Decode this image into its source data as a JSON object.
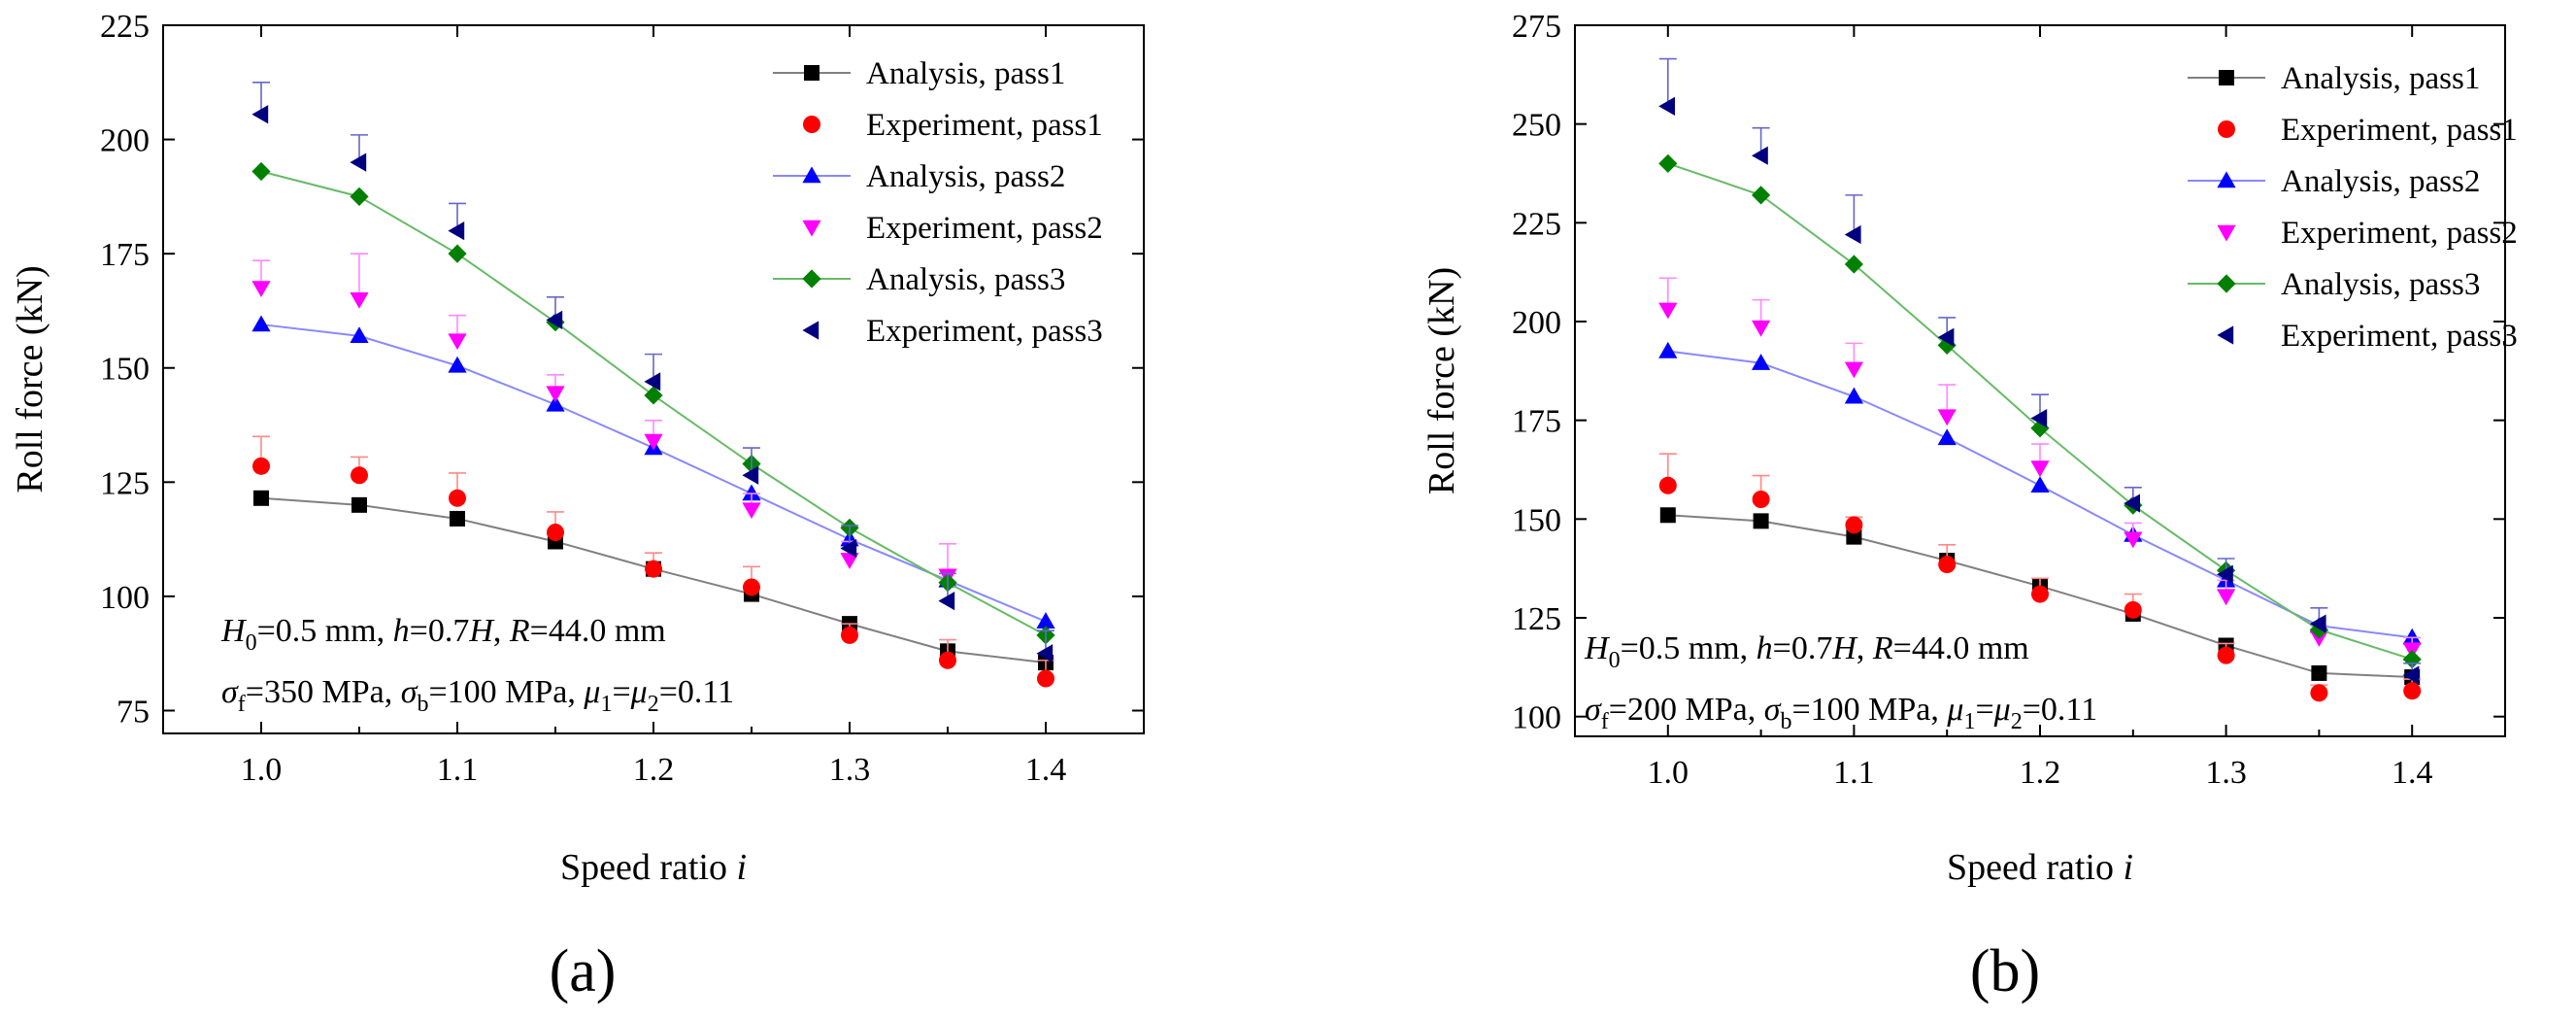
{
  "chart_data": [
    {
      "type": "line",
      "panel_label": "(a)",
      "xlabel": "Speed ratio i",
      "xlabel_main": "Speed ratio ",
      "xlabel_italic": "i",
      "ylabel": "Roll force (kN)",
      "xlim": [
        0.95,
        1.45
      ],
      "ylim": [
        70,
        225
      ],
      "xticks": [
        1.0,
        1.1,
        1.2,
        1.3,
        1.4
      ],
      "xtick_labels": [
        "1.0",
        "1.1",
        "1.2",
        "1.3",
        "1.4"
      ],
      "yticks": [
        75,
        100,
        125,
        150,
        175,
        200,
        225
      ],
      "ytick_labels": [
        "75",
        "100",
        "125",
        "150",
        "175",
        "200",
        "225"
      ],
      "legend_position": "top-right",
      "grid": false,
      "x": [
        1.0,
        1.05,
        1.1,
        1.15,
        1.2,
        1.25,
        1.3,
        1.35,
        1.4
      ],
      "series": [
        {
          "name": "Analysis, pass1",
          "kind": "analysis",
          "marker": "square",
          "color": "#000000",
          "line_color": "#808080",
          "values": [
            121.5,
            120,
            117,
            112,
            106,
            100.5,
            94,
            88,
            85.5
          ]
        },
        {
          "name": "Experiment, pass1",
          "kind": "experiment",
          "marker": "circle",
          "color": "#ff0000",
          "values": [
            128.5,
            126.5,
            121.5,
            114,
            106,
            102,
            91.5,
            86,
            82
          ],
          "errors": [
            6.5,
            4,
            5.5,
            4.5,
            3.5,
            4.5,
            2.5,
            4.5,
            4
          ]
        },
        {
          "name": "Analysis, pass2",
          "kind": "analysis",
          "marker": "triangle-up",
          "color": "#0000ff",
          "line_color": "#8888ff",
          "values": [
            159.5,
            157,
            150.5,
            142,
            132.5,
            122.5,
            112.5,
            103.5,
            94.5
          ]
        },
        {
          "name": "Experiment, pass2",
          "kind": "experiment",
          "marker": "triangle-down",
          "color": "#ff00ff",
          "values": [
            167.5,
            165,
            156,
            144.5,
            134,
            119,
            108,
            104.5,
            null
          ],
          "errors": [
            6,
            10,
            5.5,
            4,
            4.5,
            3.5,
            4,
            7,
            null
          ]
        },
        {
          "name": "Analysis, pass3",
          "kind": "analysis",
          "marker": "diamond",
          "color": "#008000",
          "line_color": "#66bb66",
          "values": [
            193,
            187.5,
            175,
            160,
            144,
            129,
            115,
            103,
            91.5
          ]
        },
        {
          "name": "Experiment, pass3",
          "kind": "experiment",
          "marker": "triangle-left",
          "color": "#000080",
          "values": [
            205.5,
            195,
            180,
            160.5,
            147,
            126.5,
            110.5,
            99,
            87.5
          ],
          "errors": [
            7,
            6,
            6,
            5,
            6,
            6,
            5,
            6,
            5
          ]
        }
      ],
      "annotation_lines": [
        [
          {
            "t": "H",
            "i": true
          },
          {
            "t": "0",
            "sub": true
          },
          {
            "t": "=0.5 mm, "
          },
          {
            "t": "h",
            "i": true
          },
          {
            "t": "=0.7"
          },
          {
            "t": "H",
            "i": true
          },
          {
            "t": ", "
          },
          {
            "t": "R",
            "i": true
          },
          {
            "t": "=44.0 mm"
          }
        ],
        [
          {
            "t": "σ",
            "i": true
          },
          {
            "t": "f",
            "sub": true
          },
          {
            "t": "=350 MPa, "
          },
          {
            "t": "σ",
            "i": true
          },
          {
            "t": "b",
            "sub": true
          },
          {
            "t": "=100 MPa, "
          },
          {
            "t": "μ",
            "i": true
          },
          {
            "t": "1",
            "sub": true
          },
          {
            "t": "="
          },
          {
            "t": "μ",
            "i": true
          },
          {
            "t": "2",
            "sub": true
          },
          {
            "t": "=0.11"
          }
        ]
      ]
    },
    {
      "type": "line",
      "panel_label": "(b)",
      "xlabel": "Speed ratio i",
      "xlabel_main": "Speed ratio ",
      "xlabel_italic": "i",
      "ylabel": "Roll force (kN)",
      "xlim": [
        0.95,
        1.45
      ],
      "ylim": [
        95,
        275
      ],
      "xticks": [
        1.0,
        1.1,
        1.2,
        1.3,
        1.4
      ],
      "xtick_labels": [
        "1.0",
        "1.1",
        "1.2",
        "1.3",
        "1.4"
      ],
      "yticks": [
        100,
        125,
        150,
        175,
        200,
        225,
        250,
        275
      ],
      "ytick_labels": [
        "100",
        "125",
        "150",
        "175",
        "200",
        "225",
        "250",
        "275"
      ],
      "legend_position": "top-right",
      "grid": false,
      "x": [
        1.0,
        1.05,
        1.1,
        1.15,
        1.2,
        1.25,
        1.3,
        1.35,
        1.4
      ],
      "series": [
        {
          "name": "Analysis, pass1",
          "kind": "analysis",
          "marker": "square",
          "color": "#000000",
          "line_color": "#808080",
          "values": [
            151,
            149.5,
            145.5,
            139.5,
            133,
            126,
            118,
            111,
            110
          ]
        },
        {
          "name": "Experiment, pass1",
          "kind": "experiment",
          "marker": "circle",
          "color": "#ff0000",
          "values": [
            158.5,
            155,
            148.5,
            138.5,
            131,
            127,
            115.5,
            106,
            106.5
          ],
          "errors": [
            8,
            6,
            2,
            5,
            4,
            4,
            3,
            2,
            3
          ]
        },
        {
          "name": "Analysis, pass2",
          "kind": "analysis",
          "marker": "triangle-up",
          "color": "#0000ff",
          "line_color": "#8888ff",
          "values": [
            192.5,
            189.5,
            181,
            170.5,
            158.5,
            146,
            134.5,
            123,
            120
          ]
        },
        {
          "name": "Experiment, pass2",
          "kind": "experiment",
          "marker": "triangle-down",
          "color": "#ff00ff",
          "values": [
            203,
            198.5,
            188,
            176,
            163,
            145,
            130.5,
            120,
            117
          ],
          "errors": [
            8,
            7,
            6.5,
            8,
            6,
            4,
            4,
            3,
            3
          ]
        },
        {
          "name": "Analysis, pass3",
          "kind": "analysis",
          "marker": "diamond",
          "color": "#008000",
          "line_color": "#66bb66",
          "values": [
            240,
            232,
            214.5,
            194,
            173,
            153.5,
            137,
            122,
            114.5
          ]
        },
        {
          "name": "Experiment, pass3",
          "kind": "experiment",
          "marker": "triangle-left",
          "color": "#000080",
          "values": [
            254.5,
            242,
            222,
            196,
            175.5,
            154,
            136,
            123.5,
            110.5
          ],
          "errors": [
            12,
            7,
            10,
            5,
            6,
            4,
            4,
            4,
            3
          ]
        }
      ],
      "annotation_lines": [
        [
          {
            "t": "H",
            "i": true
          },
          {
            "t": "0",
            "sub": true
          },
          {
            "t": "=0.5 mm, "
          },
          {
            "t": "h",
            "i": true
          },
          {
            "t": "=0.7"
          },
          {
            "t": "H",
            "i": true
          },
          {
            "t": ", "
          },
          {
            "t": "R",
            "i": true
          },
          {
            "t": "=44.0 mm"
          }
        ],
        [
          {
            "t": "σ",
            "i": true
          },
          {
            "t": "f",
            "sub": true
          },
          {
            "t": "=200 MPa, "
          },
          {
            "t": "σ",
            "i": true
          },
          {
            "t": "b",
            "sub": true
          },
          {
            "t": "=100 MPa, "
          },
          {
            "t": "μ",
            "i": true
          },
          {
            "t": "1",
            "sub": true
          },
          {
            "t": "="
          },
          {
            "t": "μ",
            "i": true
          },
          {
            "t": "2",
            "sub": true
          },
          {
            "t": "=0.11"
          }
        ]
      ]
    }
  ]
}
